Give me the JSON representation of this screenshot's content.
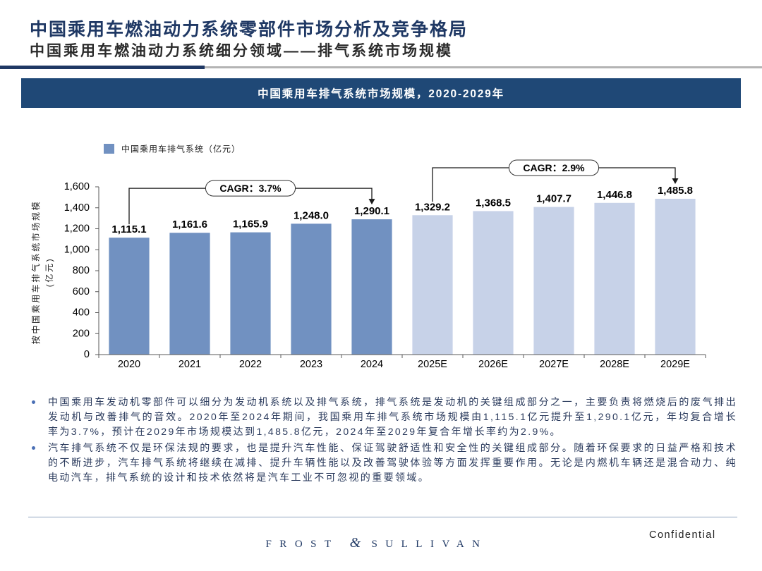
{
  "header": {
    "title": "中国乘用车燃油动力系统零部件市场分析及竞争格局",
    "subtitle": "中国乘用车燃油动力系统细分领域——排气系统市场规模"
  },
  "chart_data": {
    "type": "bar",
    "title": "中国乘用车排气系统市场规模，2020-2029年",
    "categories": [
      "2020",
      "2021",
      "2022",
      "2023",
      "2024",
      "2025E",
      "2026E",
      "2027E",
      "2028E",
      "2029E"
    ],
    "series": [
      {
        "name": "中国乘用车排气系统（亿元）",
        "values": [
          1115.1,
          1161.6,
          1165.9,
          1248.0,
          1290.1,
          1329.2,
          1368.5,
          1407.7,
          1446.8,
          1485.8
        ]
      }
    ],
    "forecast": [
      false,
      false,
      false,
      false,
      false,
      true,
      true,
      true,
      true,
      true
    ],
    "ylabel": "按中国乘用车排气系统市场规模",
    "ylabel_unit": "(亿元)",
    "ylim": [
      0,
      1600
    ],
    "yticks": [
      0,
      200,
      400,
      600,
      800,
      1000,
      1200,
      1400,
      1600
    ],
    "grid": false,
    "legend": "top-left",
    "colors": {
      "actual": "#7191c1",
      "forecast": "#c7d2e8"
    },
    "annotations": [
      {
        "label": "CAGR：3.7%",
        "from": "2020",
        "to": "2024"
      },
      {
        "label": "CAGR：2.9%",
        "from": "2025E",
        "to": "2029E"
      }
    ]
  },
  "bullets": [
    "中国乘用车发动机零部件可以细分为发动机系统以及排气系统，排气系统是发动机的关键组成部分之一，主要负责将燃烧后的废气排出发动机与改善排气的音效。2020年至2024年期间，我国乘用车排气系统市场规模由1,115.1亿元提升至1,290.1亿元，年均复合增长率为3.7%，预计在2029年市场规模达到1,485.8亿元，2024年至2029年复合年增长率约为2.9%。",
    "汽车排气系统不仅是环保法规的要求，也是提升汽车性能、保证驾驶舒适性和安全性的关键组成部分。随着环保要求的日益严格和技术的不断进步，汽车排气系统将继续在减排、提升车辆性能以及改善驾驶体验等方面发挥重要作用。无论是内燃机车辆还是混合动力、纯电动汽车，排气系统的设计和技术依然将是汽车工业不可忽视的重要领域。"
  ],
  "footer": {
    "logo": {
      "left": "FROST",
      "amp": "&",
      "right": "SULLIVAN"
    },
    "confidential": "Confidential"
  }
}
